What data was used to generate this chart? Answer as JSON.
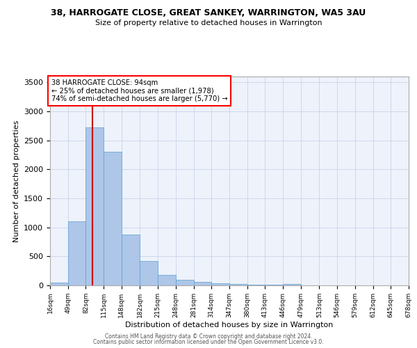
{
  "title": "38, HARROGATE CLOSE, GREAT SANKEY, WARRINGTON, WA5 3AU",
  "subtitle": "Size of property relative to detached houses in Warrington",
  "xlabel": "Distribution of detached houses by size in Warrington",
  "ylabel": "Number of detached properties",
  "annotation_line1": "38 HARROGATE CLOSE: 94sqm",
  "annotation_line2": "← 25% of detached houses are smaller (1,978)",
  "annotation_line3": "74% of semi-detached houses are larger (5,770) →",
  "property_size_sqm": 94,
  "bin_edges": [
    16,
    49,
    82,
    115,
    148,
    182,
    215,
    248,
    281,
    314,
    347,
    380,
    413,
    446,
    479,
    513,
    546,
    579,
    612,
    645,
    678
  ],
  "bar_heights": [
    50,
    1100,
    2720,
    2300,
    880,
    420,
    185,
    100,
    60,
    35,
    20,
    15,
    10,
    20,
    5,
    5,
    3,
    2,
    2,
    2
  ],
  "bar_color": "#aec6e8",
  "bar_edge_color": "#5a9fd4",
  "red_line_color": "#cc0000",
  "background_color": "#eef2fb",
  "grid_color": "#c8d4e8",
  "ylim": [
    0,
    3600
  ],
  "yticks": [
    0,
    500,
    1000,
    1500,
    2000,
    2500,
    3000,
    3500
  ],
  "footer_line1": "Contains HM Land Registry data © Crown copyright and database right 2024.",
  "footer_line2": "Contains public sector information licensed under the Open Government Licence v3.0."
}
